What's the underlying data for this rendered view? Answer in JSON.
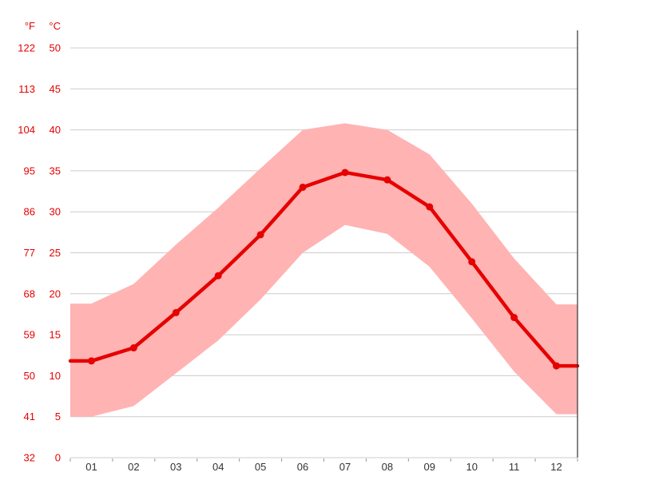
{
  "chart_data": {
    "type": "line",
    "title": "",
    "unit_left": "°F",
    "unit_right": "°C",
    "x_tick_labels": [
      "01",
      "02",
      "03",
      "04",
      "05",
      "06",
      "07",
      "08",
      "09",
      "10",
      "11",
      "12"
    ],
    "y_axis_celsius": {
      "label": "°C",
      "ticks": [
        0,
        5,
        10,
        15,
        20,
        25,
        30,
        35,
        40,
        45,
        50
      ]
    },
    "y_axis_fahrenheit": {
      "label": "°F",
      "ticks": [
        32,
        41,
        50,
        59,
        68,
        77,
        86,
        95,
        104,
        113,
        122
      ]
    },
    "ylim_celsius": [
      0,
      52
    ],
    "grid": true,
    "legend": "none",
    "series": [
      {
        "name": "mean-temperature-c",
        "style": "line-with-markers",
        "values": [
          11.8,
          13.4,
          17.7,
          22.2,
          27.2,
          33.0,
          34.8,
          33.9,
          30.6,
          23.9,
          17.1,
          11.2
        ]
      },
      {
        "name": "max-temperature-c",
        "style": "band-upper",
        "values": [
          18.8,
          21.2,
          26.0,
          30.5,
          35.3,
          40.0,
          40.8,
          40.0,
          37.0,
          31.0,
          24.3,
          18.7
        ]
      },
      {
        "name": "min-temperature-c",
        "style": "band-lower",
        "values": [
          5.0,
          6.3,
          10.3,
          14.3,
          19.3,
          25.0,
          28.4,
          27.3,
          23.3,
          17.0,
          10.5,
          5.3
        ]
      }
    ],
    "colors": {
      "line": "#e60000",
      "marker": "#e60000",
      "band": "#ffb3b3",
      "grid": "#cccccc",
      "tick": "#999999",
      "axis_label": "#e60000",
      "month_label": "#333333",
      "axis_line": "#333333",
      "background": "#ffffff"
    }
  }
}
